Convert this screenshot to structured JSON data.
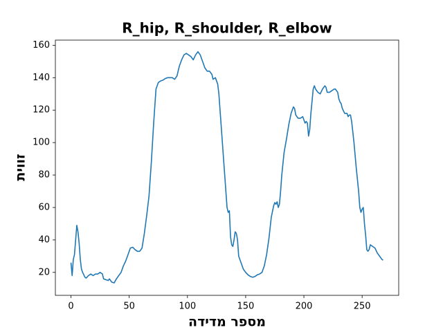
{
  "chart_data": {
    "type": "line",
    "title": "R_hip, R_shoulder, R_elbow",
    "xlabel": "מספר מדידה",
    "ylabel": "זווית",
    "x": [
      0,
      1,
      2,
      3,
      4,
      5,
      6,
      7,
      8,
      9,
      10,
      12,
      13,
      15,
      17,
      19,
      21,
      23,
      25,
      27,
      28,
      30,
      32,
      33,
      35,
      37,
      39,
      41,
      43,
      45,
      47,
      49,
      51,
      53,
      55,
      57,
      59,
      61,
      63,
      65,
      67,
      69,
      71,
      73,
      75,
      77,
      79,
      81,
      83,
      85,
      87,
      89,
      91,
      93,
      95,
      97,
      99,
      101,
      103,
      105,
      107,
      109,
      111,
      113,
      115,
      117,
      119,
      121,
      122,
      124,
      126,
      127,
      129,
      131,
      133,
      134,
      135,
      136,
      137,
      138,
      139,
      140,
      141,
      142,
      143,
      144,
      146,
      148,
      150,
      152,
      154,
      156,
      158,
      160,
      162,
      164,
      166,
      168,
      170,
      172,
      174,
      175,
      176,
      177,
      178,
      179,
      180,
      181,
      183,
      185,
      187,
      189,
      191,
      192,
      193,
      195,
      197,
      199,
      201,
      202,
      203,
      204,
      205,
      206,
      208,
      209,
      210,
      212,
      214,
      216,
      218,
      219,
      220,
      222,
      224,
      226,
      227,
      229,
      230,
      231,
      232,
      233,
      235,
      237,
      238,
      239,
      240,
      241,
      243,
      245,
      247,
      248,
      249,
      250,
      251,
      252,
      253,
      254,
      255,
      256,
      257,
      259,
      261,
      263,
      265,
      267,
      268
    ],
    "series": [
      {
        "color": "#1f77b4",
        "values": [
          26,
          18,
          28,
          31,
          40,
          49,
          45,
          38,
          28,
          22,
          20,
          17,
          16.5,
          18,
          19,
          18,
          19,
          19,
          20,
          19,
          16,
          15.5,
          15,
          16,
          14,
          13.5,
          16,
          18,
          20,
          24,
          27,
          31,
          35,
          35.5,
          34,
          33,
          33,
          35,
          44,
          55,
          67,
          88,
          112,
          133,
          137,
          138,
          138.5,
          139.5,
          140,
          140,
          140,
          139,
          141,
          147,
          151,
          154,
          155,
          154,
          153,
          151,
          154,
          156,
          154,
          150,
          146,
          144,
          144,
          142,
          139,
          140,
          136,
          130,
          110,
          90,
          70,
          60,
          57,
          58,
          42,
          37,
          36,
          40,
          45,
          44,
          40,
          30,
          26,
          22,
          20,
          18.5,
          17.5,
          17,
          17.5,
          18.5,
          19,
          20,
          24,
          31,
          41,
          54,
          61,
          63,
          62,
          63.5,
          60,
          62,
          70,
          80,
          94,
          102,
          111,
          118,
          122,
          121,
          117,
          115,
          115,
          116,
          112,
          113,
          112,
          104,
          108,
          118,
          133,
          135,
          133,
          131,
          130,
          133,
          135,
          134,
          131,
          131,
          132,
          133,
          133,
          131,
          127,
          125,
          124,
          121,
          118,
          118,
          116,
          117,
          117,
          113,
          100,
          84,
          70,
          60,
          57,
          59,
          60,
          50,
          43,
          34,
          33,
          34,
          37,
          36,
          35,
          32,
          30,
          28,
          27.5
        ]
      }
    ],
    "xlim": [
      -13.4,
      281.4
    ],
    "ylim": [
      5.85,
      163.15
    ],
    "xticks": [
      0,
      50,
      100,
      150,
      200,
      250
    ],
    "yticks": [
      20,
      40,
      60,
      80,
      100,
      120,
      140,
      160
    ],
    "grid": false
  }
}
